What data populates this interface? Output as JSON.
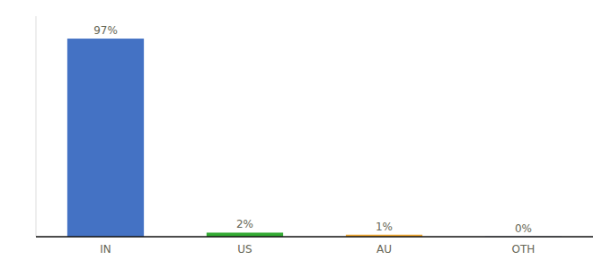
{
  "chart_data": {
    "type": "bar",
    "categories": [
      "IN",
      "US",
      "AU",
      "OTH"
    ],
    "values": [
      97,
      2,
      1,
      0.1
    ],
    "value_labels": [
      "97%",
      "2%",
      "1%",
      "0%"
    ],
    "data_labels": true,
    "colors": [
      "#4472c4",
      "#33aa33",
      "#f0a830",
      "#4472c4"
    ],
    "ylim": [
      0,
      108
    ],
    "tick_labels": "x",
    "grid": false
  }
}
